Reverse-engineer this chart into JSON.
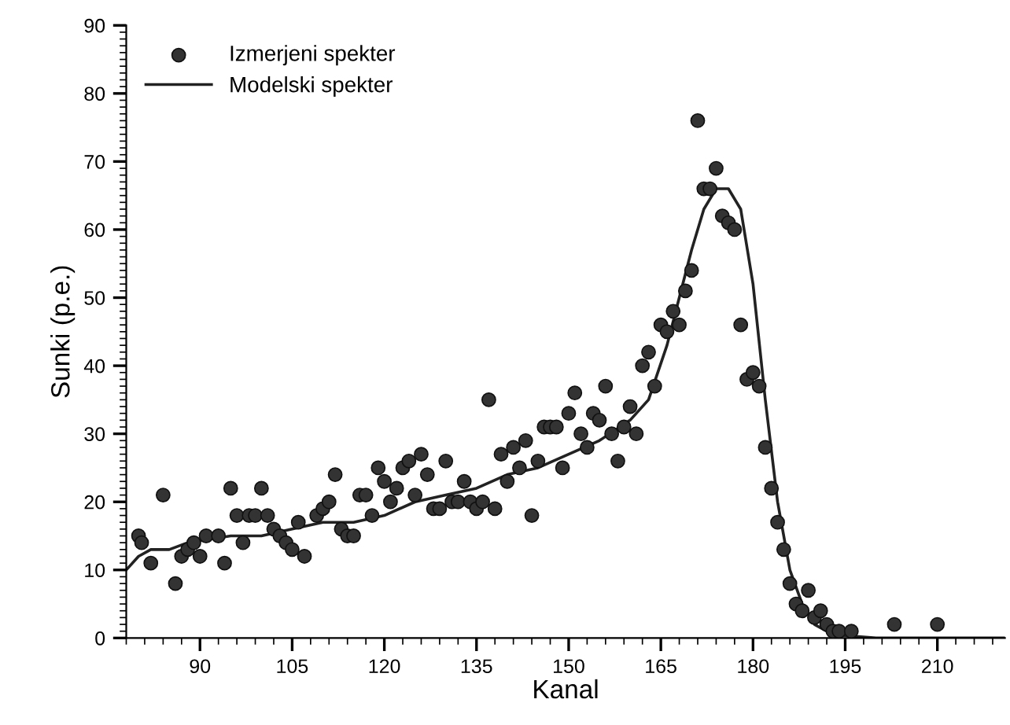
{
  "chart_data": {
    "type": "scatter",
    "xlabel": "Kanal",
    "ylabel": "Sunki (p.e.)",
    "xlim": [
      78,
      221
    ],
    "ylim": [
      0,
      90
    ],
    "xticks": [
      90,
      105,
      120,
      135,
      150,
      165,
      180,
      195,
      210
    ],
    "yticks": [
      0,
      10,
      20,
      30,
      40,
      50,
      60,
      70,
      80,
      90
    ],
    "grid": false,
    "legend": "top left",
    "series": [
      {
        "name": "Izmerjeni spekter",
        "marker": "circle",
        "color": "#333333",
        "x": [
          80,
          80.5,
          82,
          84,
          86,
          87,
          88,
          89,
          90,
          91,
          93,
          94,
          95,
          96,
          97,
          98,
          99,
          100,
          101,
          102,
          103,
          104,
          105,
          106,
          107,
          109,
          110,
          111,
          112,
          113,
          114,
          115,
          116,
          117,
          118,
          119,
          120,
          121,
          122,
          123,
          124,
          125,
          126,
          127,
          128,
          129,
          130,
          131,
          132,
          133,
          134,
          135,
          136,
          137,
          138,
          139,
          140,
          141,
          142,
          143,
          144,
          145,
          146,
          147,
          148,
          149,
          150,
          151,
          152,
          153,
          154,
          155,
          156,
          157,
          158,
          159,
          160,
          161,
          162,
          163,
          164,
          165,
          166,
          167,
          168,
          169,
          170,
          171,
          172,
          173,
          174,
          175,
          176,
          177,
          178,
          179,
          180,
          181,
          182,
          183,
          184,
          185,
          186,
          187,
          188,
          189,
          190,
          191,
          192,
          193,
          194,
          196,
          203,
          210
        ],
        "values": [
          15,
          14,
          11,
          21,
          8,
          12,
          13,
          14,
          12,
          15,
          15,
          11,
          22,
          18,
          14,
          18,
          18,
          22,
          18,
          16,
          15,
          14,
          13,
          17,
          12,
          18,
          19,
          20,
          24,
          16,
          15,
          15,
          21,
          21,
          18,
          25,
          23,
          20,
          22,
          25,
          26,
          21,
          27,
          24,
          19,
          19,
          26,
          20,
          20,
          23,
          20,
          19,
          20,
          35,
          19,
          27,
          23,
          28,
          25,
          29,
          18,
          26,
          31,
          31,
          31,
          25,
          33,
          36,
          30,
          28,
          33,
          32,
          37,
          30,
          26,
          31,
          34,
          30,
          40,
          42,
          37,
          46,
          45,
          48,
          46,
          51,
          54,
          76,
          66,
          66,
          69,
          62,
          61,
          60,
          46,
          38,
          39,
          37,
          28,
          22,
          17,
          13,
          8,
          5,
          4,
          7,
          3,
          4,
          2,
          1,
          1,
          1,
          2,
          2
        ]
      },
      {
        "name": "Modelski spekter",
        "type": "line",
        "marker": "none",
        "line_style": "solid",
        "color": "#222222",
        "x": [
          78,
          80,
          82,
          85,
          88,
          95,
          100,
          105,
          110,
          115,
          120,
          125,
          130,
          135,
          140,
          145,
          150,
          155,
          160,
          163,
          166,
          168,
          170,
          172,
          174,
          176,
          178,
          180,
          182,
          184,
          186,
          188,
          190,
          193,
          200,
          221
        ],
        "values": [
          10,
          12,
          13,
          13,
          14,
          15,
          15,
          16,
          17,
          17,
          18,
          20,
          21,
          22,
          24,
          25,
          27,
          29,
          32,
          35,
          43,
          50,
          57,
          63,
          66,
          66,
          63,
          52,
          35,
          20,
          10,
          5,
          2,
          0.5,
          0,
          0
        ]
      }
    ]
  }
}
